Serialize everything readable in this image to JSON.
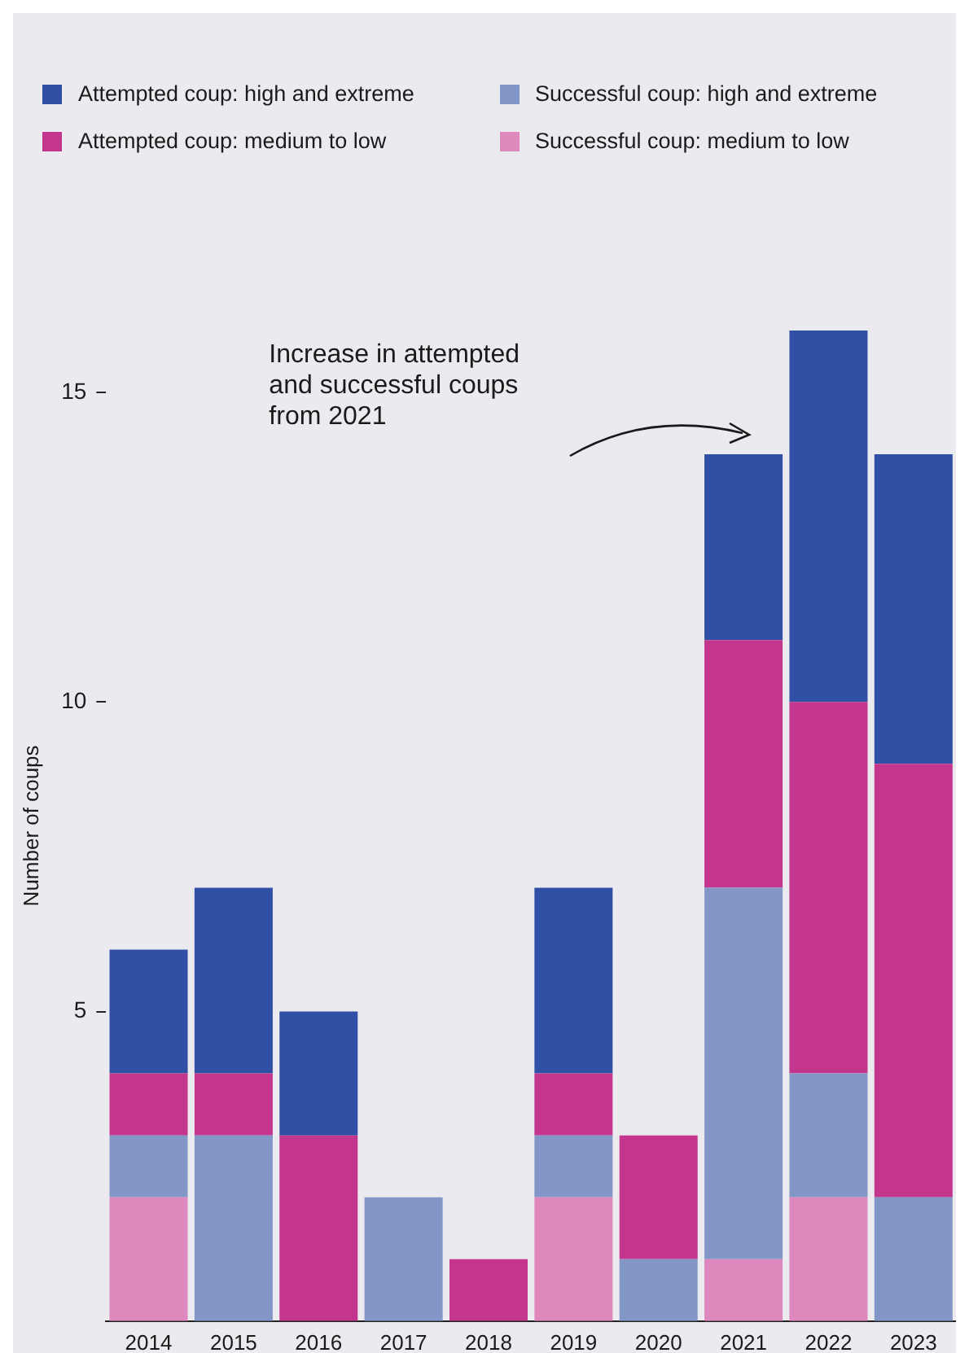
{
  "chart_data": {
    "type": "bar",
    "stacked": true,
    "ylabel": "Number of coups",
    "categories": [
      "2014",
      "2015",
      "2016",
      "2017",
      "2018",
      "2019",
      "2020",
      "2021",
      "2022",
      "2023"
    ],
    "series": [
      {
        "name": "Successful coup: medium to low",
        "color": "#de88be",
        "values": [
          2,
          0,
          0,
          0,
          0,
          2,
          0,
          1,
          2,
          0
        ]
      },
      {
        "name": "Successful coup: high and extreme",
        "color": "#8297c8",
        "values": [
          1,
          3,
          0,
          2,
          0,
          1,
          1,
          6,
          2,
          2
        ]
      },
      {
        "name": "Attempted coup: medium to low",
        "color": "#c4358e",
        "values": [
          1,
          1,
          3,
          0,
          1,
          1,
          2,
          4,
          6,
          7
        ]
      },
      {
        "name": "Attempted coup: high and extreme",
        "color": "#3050a5",
        "values": [
          2,
          3,
          2,
          0,
          0,
          3,
          0,
          3,
          6,
          5
        ]
      }
    ],
    "ylim": [
      0,
      16
    ],
    "yticks": [
      5,
      10,
      15
    ],
    "grid": false,
    "legend": "top",
    "annotations": [
      "Increase in attempted\nand successful coups\nfrom 2021"
    ]
  }
}
